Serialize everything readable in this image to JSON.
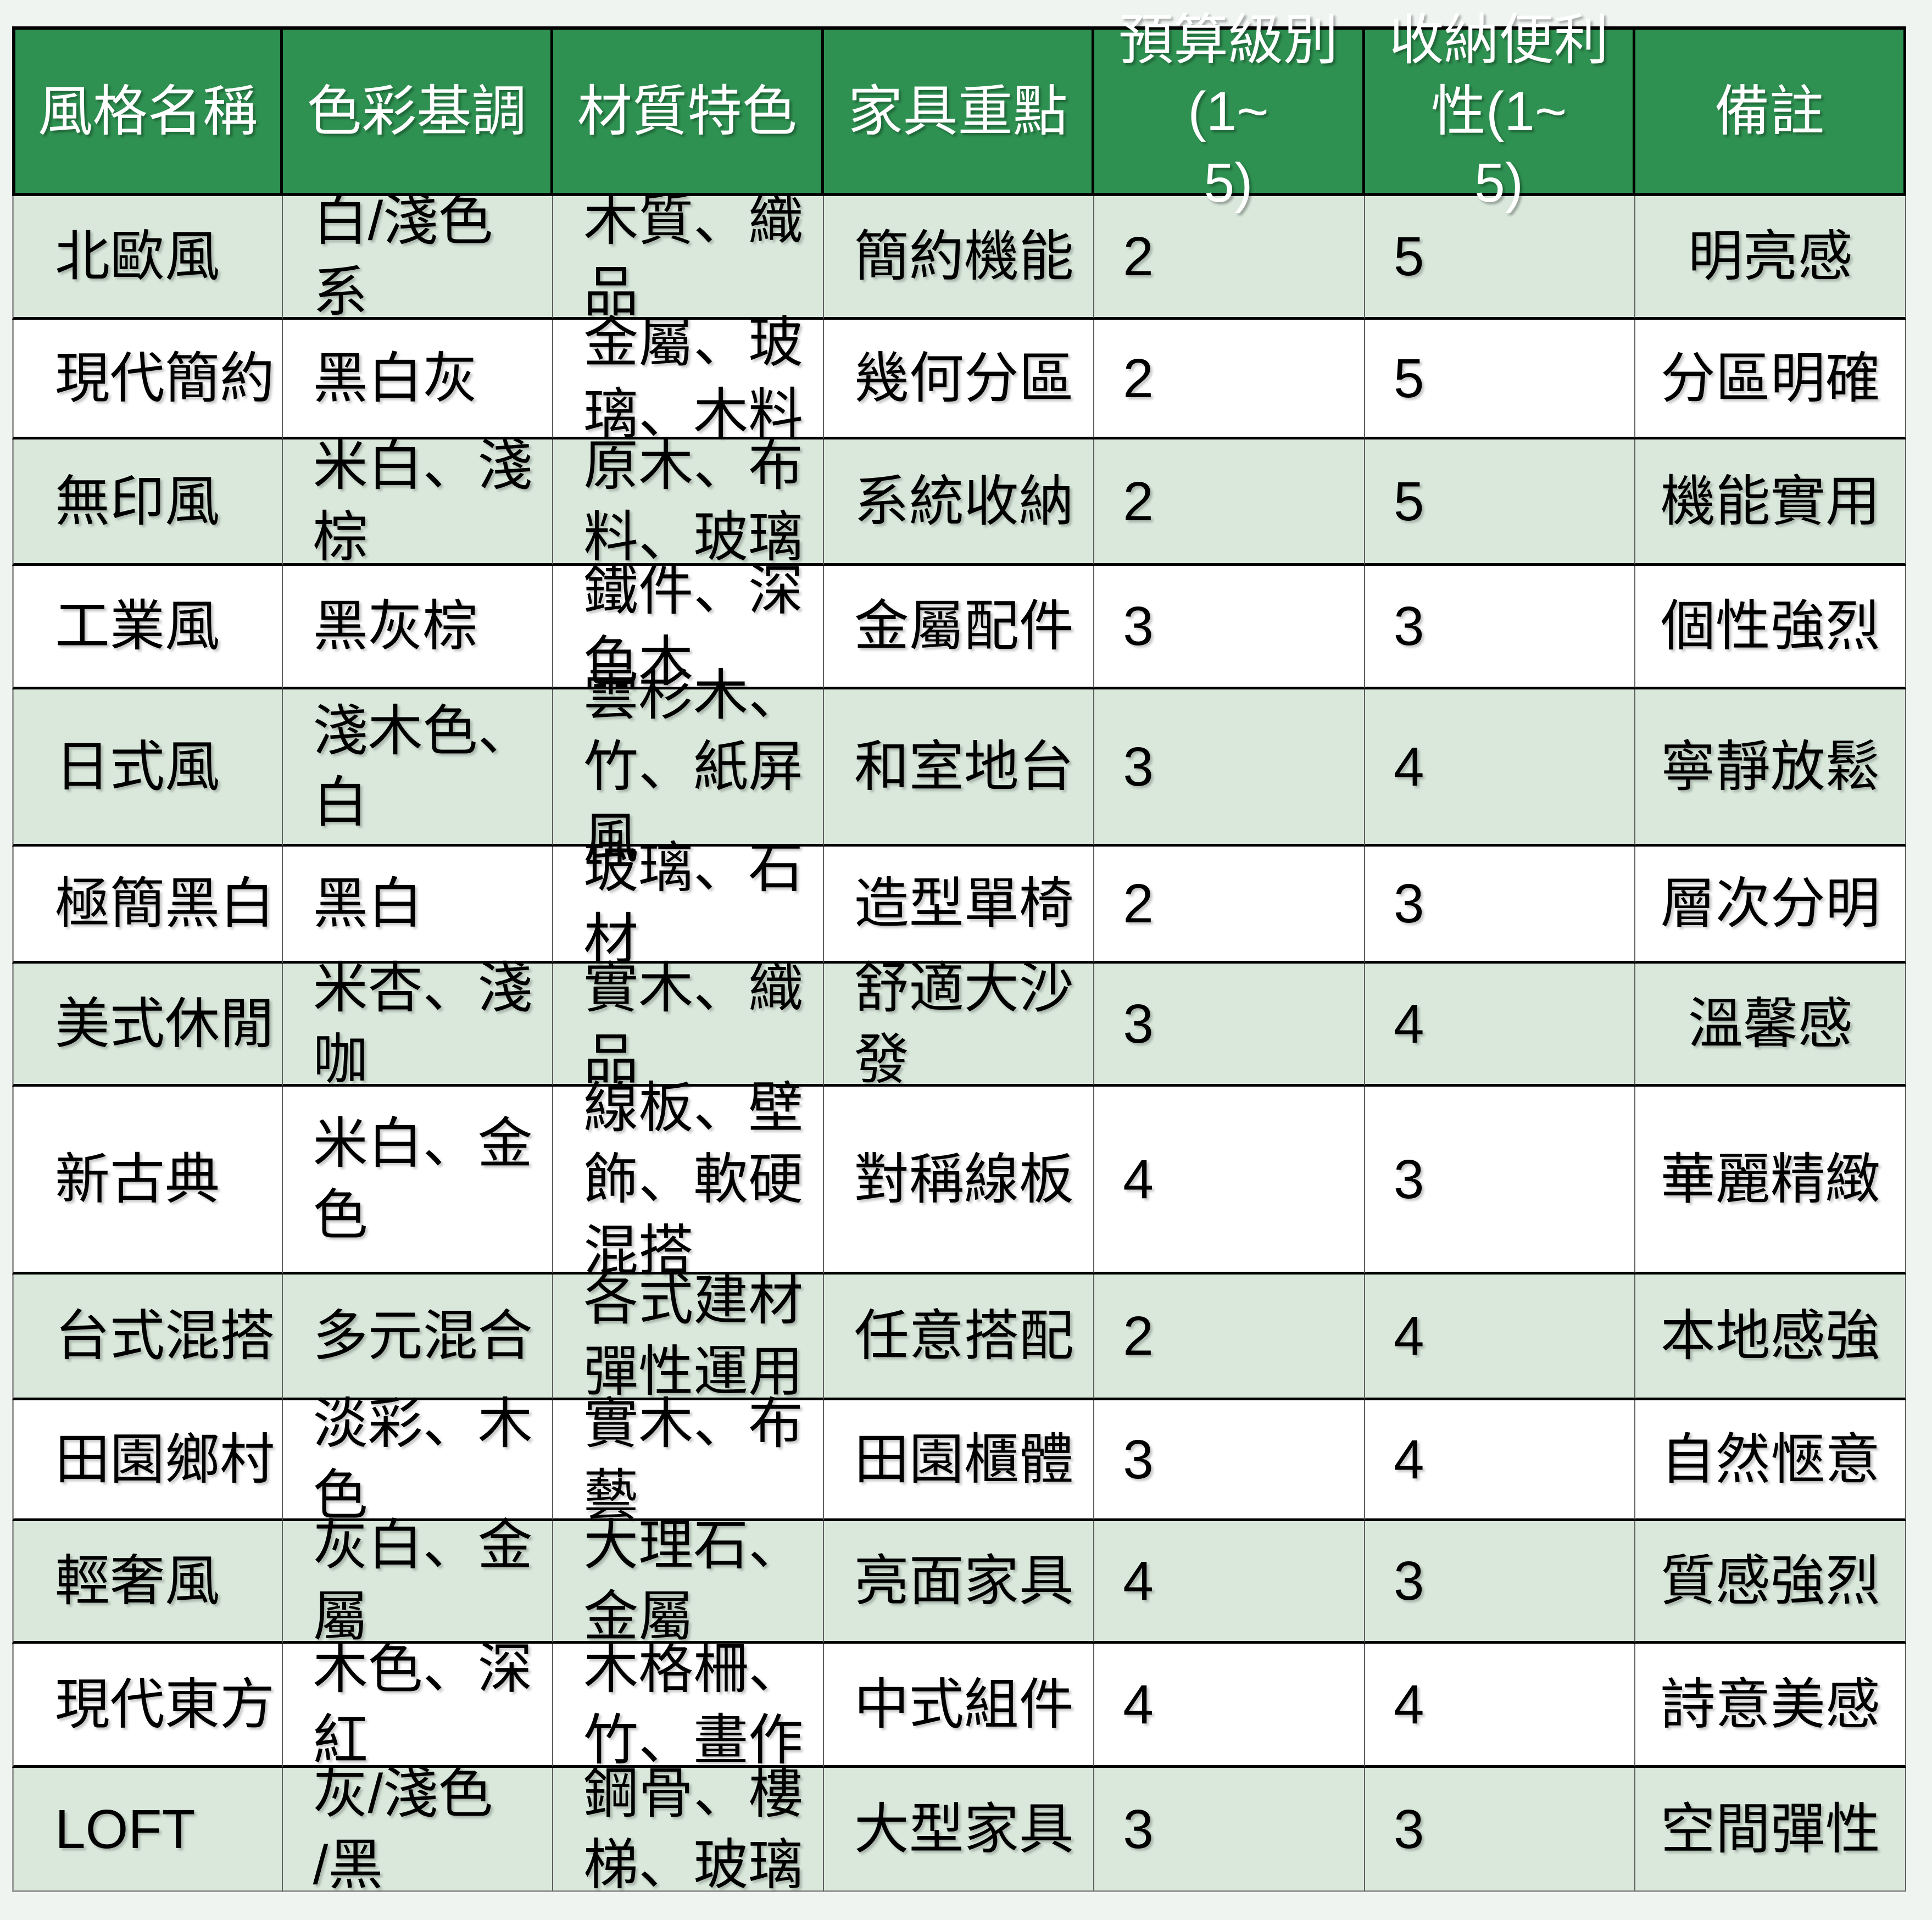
{
  "table": {
    "columns": [
      {
        "label": "風格名稱"
      },
      {
        "label": "色彩基調"
      },
      {
        "label": "材質特色"
      },
      {
        "label": "家具重點"
      },
      {
        "label": "預算級別\n(1~\n5)"
      },
      {
        "label": "收納便利\n性(1~\n5)"
      },
      {
        "label": "備註"
      }
    ],
    "rows": [
      {
        "style": "北歐風",
        "color": "白/淺色\n系",
        "material": "木質、織\n品",
        "furniture": "簡約機能",
        "budget": "2",
        "storage": "5",
        "note": "明亮感"
      },
      {
        "style": "現代簡約",
        "color": "黑白灰",
        "material": "金屬、玻\n璃、木料",
        "furniture": "幾何分區",
        "budget": "2",
        "storage": "5",
        "note": "分區明確"
      },
      {
        "style": "無印風",
        "color": "米白、淺\n棕",
        "material": "原木、布\n料、玻璃",
        "furniture": "系統收納",
        "budget": "2",
        "storage": "5",
        "note": "機能實用"
      },
      {
        "style": "工業風",
        "color": "黑灰棕",
        "material": "鐵件、深\n色木",
        "furniture": "金屬配件",
        "budget": "3",
        "storage": "3",
        "note": "個性強烈"
      },
      {
        "style": "日式風",
        "color": "淺木色、\n白",
        "material": "雲杉木、\n竹、紙屏\n風",
        "furniture": "和室地台",
        "budget": "3",
        "storage": "4",
        "note": "寧靜放鬆"
      },
      {
        "style": "極簡黑白",
        "color": "黑白",
        "material": "玻璃、石\n材",
        "furniture": "造型單椅",
        "budget": "2",
        "storage": "3",
        "note": "層次分明"
      },
      {
        "style": "美式休閒",
        "color": "米杏、淺\n咖",
        "material": "實木、織\n品",
        "furniture": "舒適大沙\n發",
        "budget": "3",
        "storage": "4",
        "note": "溫馨感"
      },
      {
        "style": "新古典",
        "color": "米白、金\n色",
        "material": "線板、壁\n飾、軟硬\n混搭",
        "furniture": "對稱線板",
        "budget": "4",
        "storage": "3",
        "note": "華麗精緻"
      },
      {
        "style": "台式混搭",
        "color": "多元混合",
        "material": "各式建材\n彈性運用",
        "furniture": "任意搭配",
        "budget": "2",
        "storage": "4",
        "note": "本地感強"
      },
      {
        "style": "田園鄉村",
        "color": "淡彩、木\n色",
        "material": "實木、布\n藝",
        "furniture": "田園櫃體",
        "budget": "3",
        "storage": "4",
        "note": "自然愜意"
      },
      {
        "style": "輕奢風",
        "color": "灰白、金\n屬",
        "material": "大理石、\n金屬",
        "furniture": "亮面家具",
        "budget": "4",
        "storage": "3",
        "note": "質感強烈"
      },
      {
        "style": "現代東方",
        "color": "木色、深\n紅",
        "material": "木格柵、\n竹、畫作",
        "furniture": "中式組件",
        "budget": "4",
        "storage": "4",
        "note": "詩意美感"
      },
      {
        "style": "LOFT",
        "color": "灰/淺色\n/黑",
        "material": "鋼骨、樓\n梯、玻璃",
        "furniture": "大型家具",
        "budget": "3",
        "storage": "3",
        "note": "空間彈性"
      }
    ]
  },
  "colors": {
    "header_bg": "#2e9151",
    "header_text": "#ffffff",
    "row_alt_bg": "#d9e8db",
    "row_bg": "#ffffff",
    "page_bg": "#eff4f1",
    "text": "#000000",
    "row_border": "#000000",
    "column_border": "#5f5f5f"
  }
}
